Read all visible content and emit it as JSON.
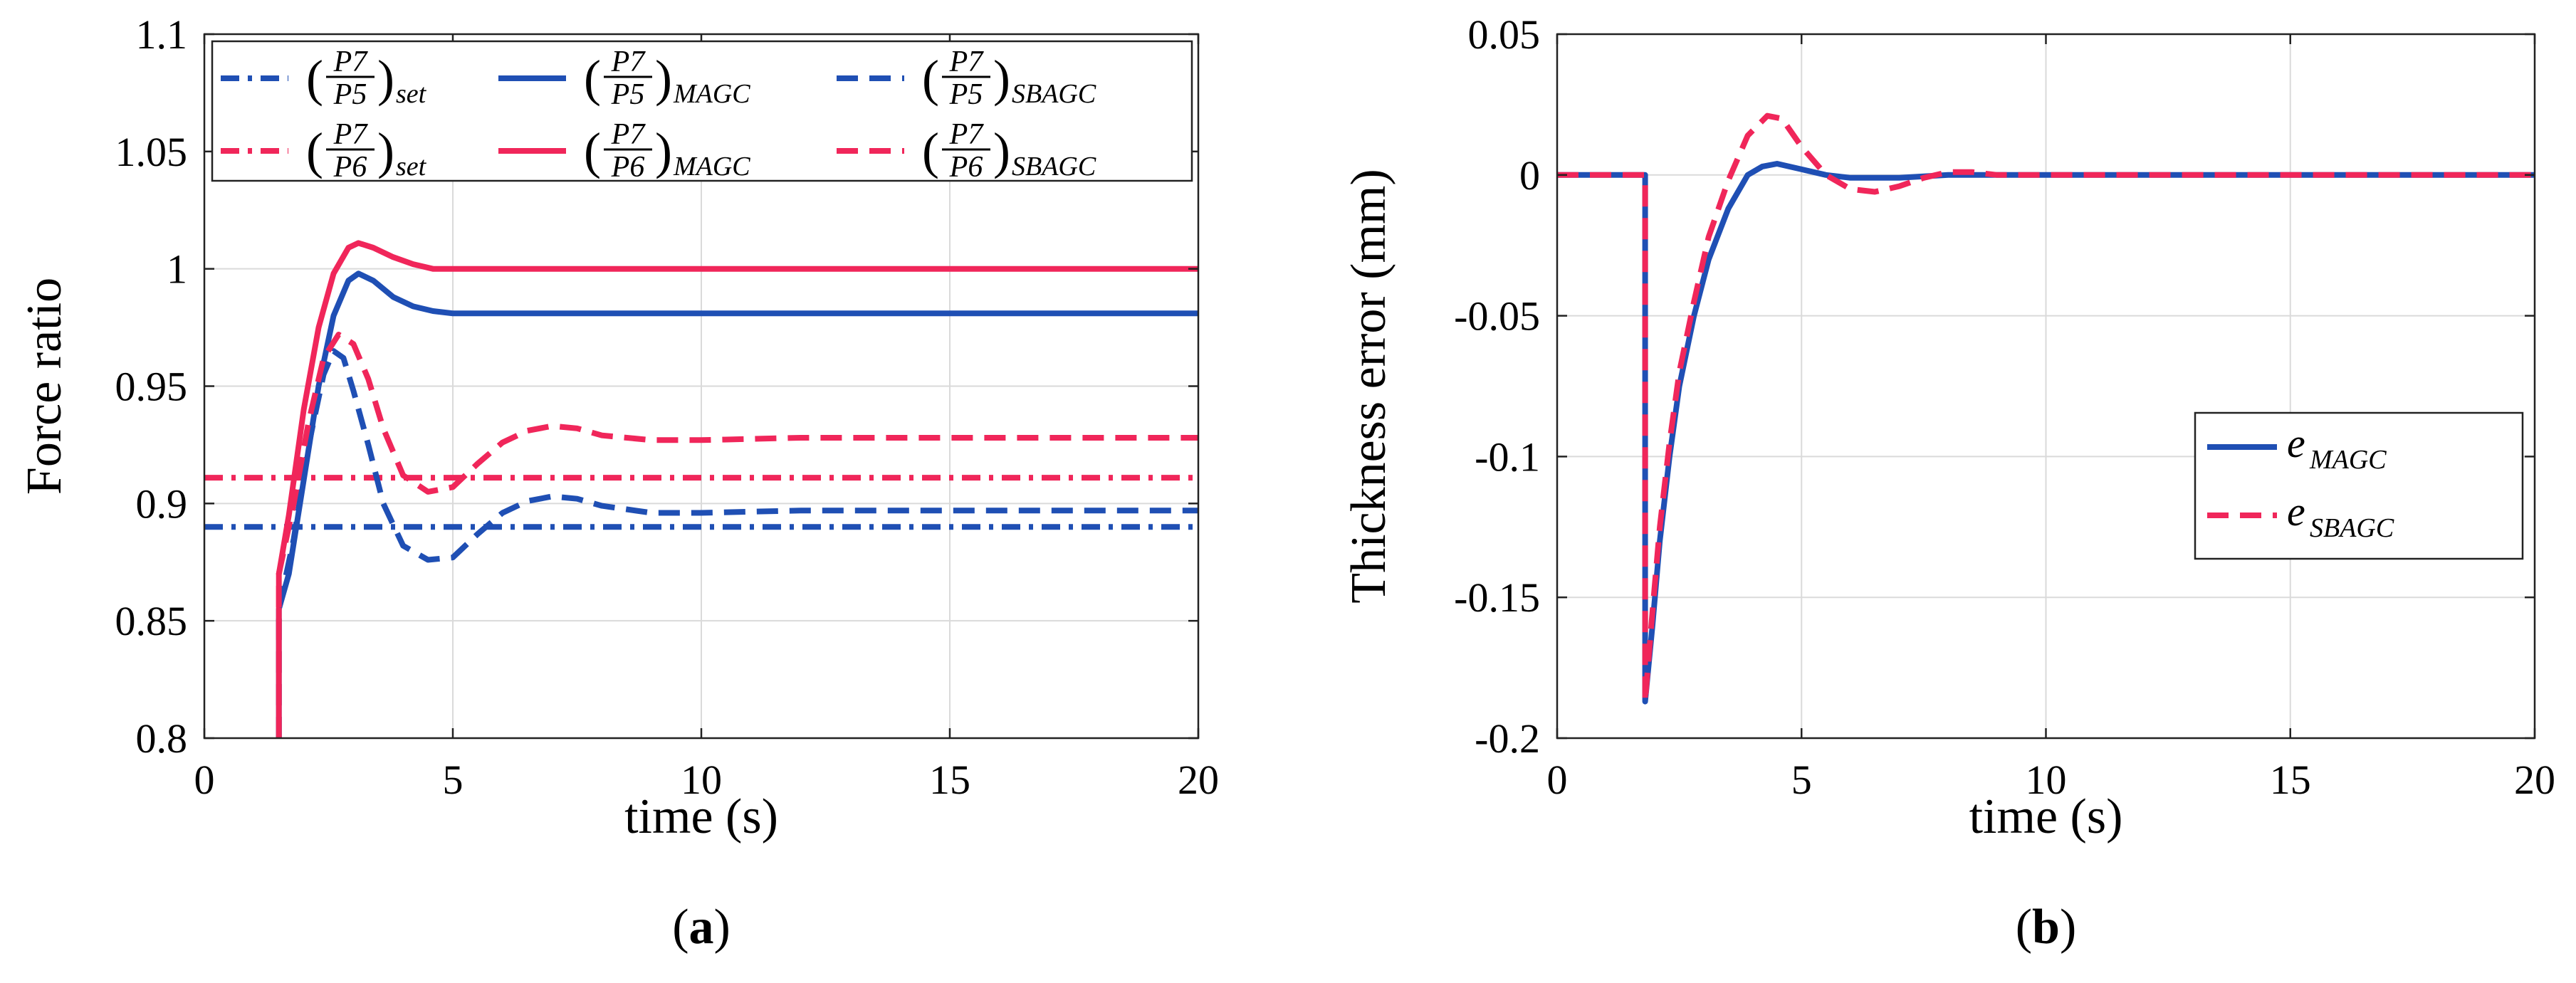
{
  "colors": {
    "blue": "#1f4fb4",
    "red": "#f0265a"
  },
  "chart_data": [
    {
      "id": "a",
      "type": "line",
      "panel_label": "a",
      "xlabel": "time (s)",
      "ylabel": "Force ratio",
      "xlim": [
        0,
        20
      ],
      "ylim": [
        0.8,
        1.1
      ],
      "xticks": [
        0,
        5,
        10,
        15,
        20
      ],
      "yticks": [
        0.8,
        0.85,
        0.9,
        0.95,
        1,
        1.05,
        1.1
      ],
      "xtick_labels": [
        "0",
        "5",
        "10",
        "15",
        "20"
      ],
      "ytick_labels": [
        "0.8",
        "0.85",
        "0.9",
        "0.95",
        "1",
        "1.05",
        "1.1"
      ],
      "grid": true,
      "legend": {
        "position": "top",
        "entries": [
          {
            "num": "P7",
            "den": "P5",
            "sub": "set",
            "series": 0
          },
          {
            "num": "P7",
            "den": "P5",
            "sub": "MAGC",
            "series": 2
          },
          {
            "num": "P7",
            "den": "P5",
            "sub": "SBAGC",
            "series": 4
          },
          {
            "num": "P7",
            "den": "P6",
            "sub": "set",
            "series": 1
          },
          {
            "num": "P7",
            "den": "P6",
            "sub": "MAGC",
            "series": 3
          },
          {
            "num": "P7",
            "den": "P6",
            "sub": "SBAGC",
            "series": 5
          }
        ]
      },
      "series": [
        {
          "name": "(P7/P5)set",
          "color": "blue",
          "dash": "dashdot",
          "points": [
            [
              0,
              0.89
            ],
            [
              20,
              0.89
            ]
          ]
        },
        {
          "name": "(P7/P6)set",
          "color": "red",
          "dash": "dashdot",
          "points": [
            [
              0,
              0.911
            ],
            [
              20,
              0.911
            ]
          ]
        },
        {
          "name": "(P7/P5)MAGC",
          "color": "blue",
          "dash": "solid",
          "points": [
            [
              1.5,
              0.8
            ],
            [
              1.5,
              0.855
            ],
            [
              1.7,
              0.87
            ],
            [
              2.0,
              0.91
            ],
            [
              2.3,
              0.95
            ],
            [
              2.6,
              0.98
            ],
            [
              2.9,
              0.995
            ],
            [
              3.1,
              0.998
            ],
            [
              3.4,
              0.995
            ],
            [
              3.8,
              0.988
            ],
            [
              4.2,
              0.984
            ],
            [
              4.6,
              0.982
            ],
            [
              5.0,
              0.981
            ],
            [
              6.0,
              0.981
            ],
            [
              8.0,
              0.981
            ],
            [
              12.0,
              0.981
            ],
            [
              20.0,
              0.981
            ]
          ]
        },
        {
          "name": "(P7/P6)MAGC",
          "color": "red",
          "dash": "solid",
          "points": [
            [
              1.5,
              0.8
            ],
            [
              1.5,
              0.87
            ],
            [
              1.7,
              0.895
            ],
            [
              2.0,
              0.94
            ],
            [
              2.3,
              0.975
            ],
            [
              2.6,
              0.998
            ],
            [
              2.9,
              1.009
            ],
            [
              3.1,
              1.011
            ],
            [
              3.4,
              1.009
            ],
            [
              3.8,
              1.005
            ],
            [
              4.2,
              1.002
            ],
            [
              4.6,
              1.0
            ],
            [
              5.0,
              1.0
            ],
            [
              8.0,
              1.0
            ],
            [
              20.0,
              1.0
            ]
          ]
        },
        {
          "name": "(P7/P5)SBAGC",
          "color": "blue",
          "dash": "dashed",
          "points": [
            [
              1.5,
              0.8
            ],
            [
              1.5,
              0.855
            ],
            [
              1.8,
              0.885
            ],
            [
              2.1,
              0.925
            ],
            [
              2.4,
              0.955
            ],
            [
              2.6,
              0.965
            ],
            [
              2.8,
              0.962
            ],
            [
              3.0,
              0.948
            ],
            [
              3.3,
              0.925
            ],
            [
              3.6,
              0.9
            ],
            [
              4.0,
              0.882
            ],
            [
              4.5,
              0.876
            ],
            [
              5.0,
              0.877
            ],
            [
              5.5,
              0.887
            ],
            [
              6.0,
              0.896
            ],
            [
              6.5,
              0.901
            ],
            [
              7.0,
              0.903
            ],
            [
              7.5,
              0.902
            ],
            [
              8.0,
              0.899
            ],
            [
              9.0,
              0.896
            ],
            [
              10.0,
              0.896
            ],
            [
              12.0,
              0.897
            ],
            [
              20.0,
              0.897
            ]
          ]
        },
        {
          "name": "(P7/P6)SBAGC",
          "color": "red",
          "dash": "dashed",
          "points": [
            [
              1.5,
              0.8
            ],
            [
              1.5,
              0.87
            ],
            [
              1.8,
              0.9
            ],
            [
              2.1,
              0.935
            ],
            [
              2.4,
              0.962
            ],
            [
              2.7,
              0.972
            ],
            [
              3.0,
              0.968
            ],
            [
              3.3,
              0.953
            ],
            [
              3.6,
              0.932
            ],
            [
              4.0,
              0.912
            ],
            [
              4.5,
              0.905
            ],
            [
              5.0,
              0.907
            ],
            [
              5.5,
              0.917
            ],
            [
              6.0,
              0.926
            ],
            [
              6.5,
              0.931
            ],
            [
              7.0,
              0.933
            ],
            [
              7.5,
              0.932
            ],
            [
              8.0,
              0.929
            ],
            [
              9.0,
              0.927
            ],
            [
              10.0,
              0.927
            ],
            [
              12.0,
              0.928
            ],
            [
              20.0,
              0.928
            ]
          ]
        }
      ]
    },
    {
      "id": "b",
      "type": "line",
      "panel_label": "b",
      "xlabel": "time (s)",
      "ylabel": "Thickness error  (mm)",
      "xlim": [
        0,
        20
      ],
      "ylim": [
        -0.2,
        0.05
      ],
      "xticks": [
        0,
        5,
        10,
        15,
        20
      ],
      "yticks": [
        -0.2,
        -0.15,
        -0.1,
        -0.05,
        0,
        0.05
      ],
      "xtick_labels": [
        "0",
        "5",
        "10",
        "15",
        "20"
      ],
      "ytick_labels": [
        "-0.2",
        "-0.15",
        "-0.1",
        "-0.05",
        "0",
        "0.05"
      ],
      "grid": true,
      "legend": {
        "position": "middle-right",
        "entries": [
          {
            "main": "e",
            "sub": "MAGC",
            "series": 0
          },
          {
            "main": "e",
            "sub": "SBAGC",
            "series": 1
          }
        ]
      },
      "series": [
        {
          "name": "eMAGC",
          "color": "blue",
          "dash": "solid",
          "points": [
            [
              0,
              0
            ],
            [
              1.8,
              0
            ],
            [
              1.8,
              -0.187
            ],
            [
              1.95,
              -0.16
            ],
            [
              2.1,
              -0.13
            ],
            [
              2.3,
              -0.1
            ],
            [
              2.5,
              -0.075
            ],
            [
              2.8,
              -0.05
            ],
            [
              3.1,
              -0.03
            ],
            [
              3.5,
              -0.012
            ],
            [
              3.9,
              0.0
            ],
            [
              4.2,
              0.003
            ],
            [
              4.5,
              0.004
            ],
            [
              5.0,
              0.002
            ],
            [
              5.5,
              0.0
            ],
            [
              6.0,
              -0.001
            ],
            [
              7.0,
              -0.001
            ],
            [
              8.0,
              0.0
            ],
            [
              20.0,
              0.0
            ]
          ]
        },
        {
          "name": "eSBAGC",
          "color": "red",
          "dash": "dashed",
          "points": [
            [
              0,
              0
            ],
            [
              1.8,
              0
            ],
            [
              1.8,
              -0.187
            ],
            [
              1.95,
              -0.155
            ],
            [
              2.1,
              -0.125
            ],
            [
              2.3,
              -0.095
            ],
            [
              2.5,
              -0.07
            ],
            [
              2.8,
              -0.045
            ],
            [
              3.1,
              -0.022
            ],
            [
              3.5,
              -0.002
            ],
            [
              3.9,
              0.014
            ],
            [
              4.3,
              0.021
            ],
            [
              4.6,
              0.02
            ],
            [
              5.0,
              0.01
            ],
            [
              5.5,
              0.0
            ],
            [
              6.0,
              -0.005
            ],
            [
              6.5,
              -0.006
            ],
            [
              7.0,
              -0.004
            ],
            [
              7.5,
              -0.001
            ],
            [
              8.0,
              0.001
            ],
            [
              8.5,
              0.001
            ],
            [
              9.0,
              0.0
            ],
            [
              20.0,
              0.0
            ]
          ]
        }
      ]
    }
  ]
}
